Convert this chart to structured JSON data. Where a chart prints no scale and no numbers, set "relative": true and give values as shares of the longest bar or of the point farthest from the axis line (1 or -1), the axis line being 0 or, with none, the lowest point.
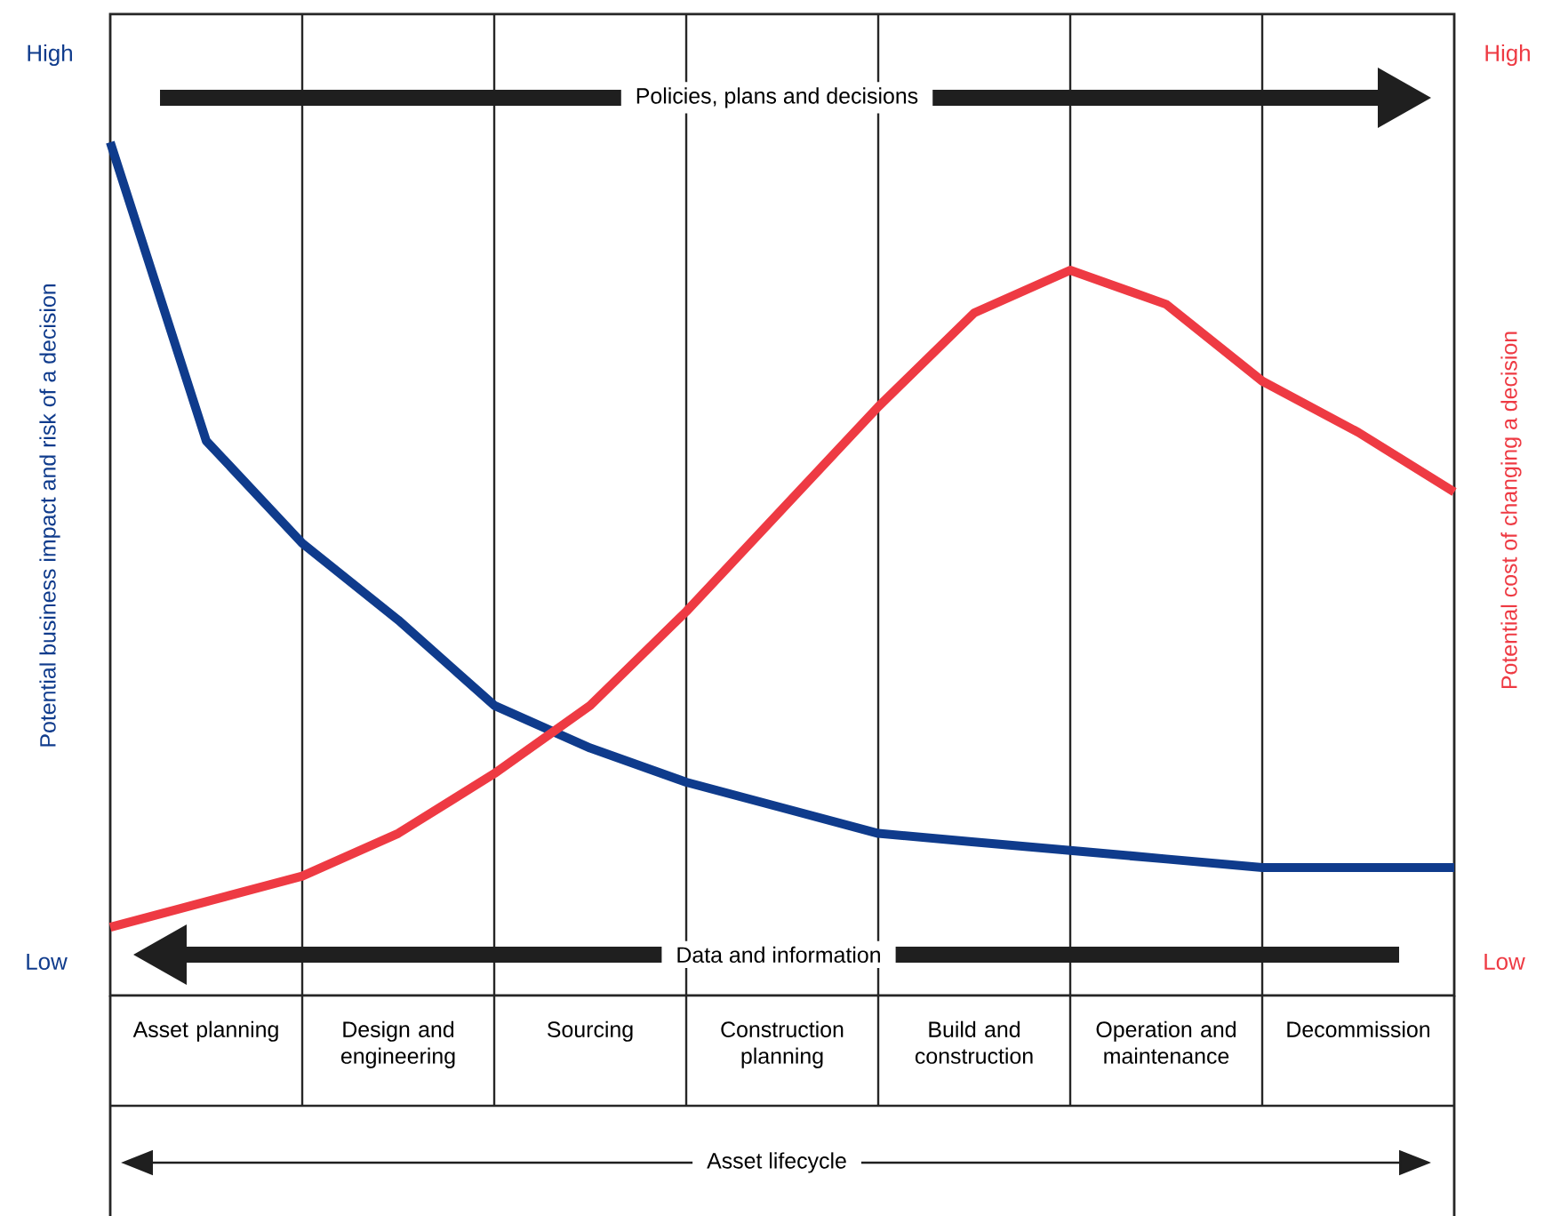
{
  "chart_data": {
    "type": "line",
    "relative": true,
    "grid": "x",
    "categories": [
      null,
      "Asset planning",
      null,
      "Design and engineering",
      null,
      "Sourcing",
      null,
      "Construction planning",
      null,
      "Build and construction",
      null,
      "Operation and maintenance",
      null,
      "Decommission",
      null
    ],
    "ylabel": "Potential business impact and risk of a decision",
    "y2label": "Potential cost of changing a decision",
    "series": [
      {
        "color": "#0f3b8c",
        "values": [
          1.0,
          0.65,
          0.53,
          0.44,
          0.34,
          0.29,
          0.25,
          0.22,
          0.19,
          0.18,
          0.17,
          0.16,
          0.15,
          0.15,
          0.15
        ]
      },
      {
        "color": "#ee3a43",
        "values": [
          0.08,
          0.11,
          0.14,
          0.19,
          0.26,
          0.34,
          0.45,
          0.57,
          0.69,
          0.8,
          0.85,
          0.81,
          0.72,
          0.66,
          0.59
        ]
      }
    ],
    "annotations": [
      "Policies, plans and decisions",
      "Data and information",
      "Asset lifecycle",
      "High",
      "Low",
      "High",
      "Low"
    ]
  }
}
